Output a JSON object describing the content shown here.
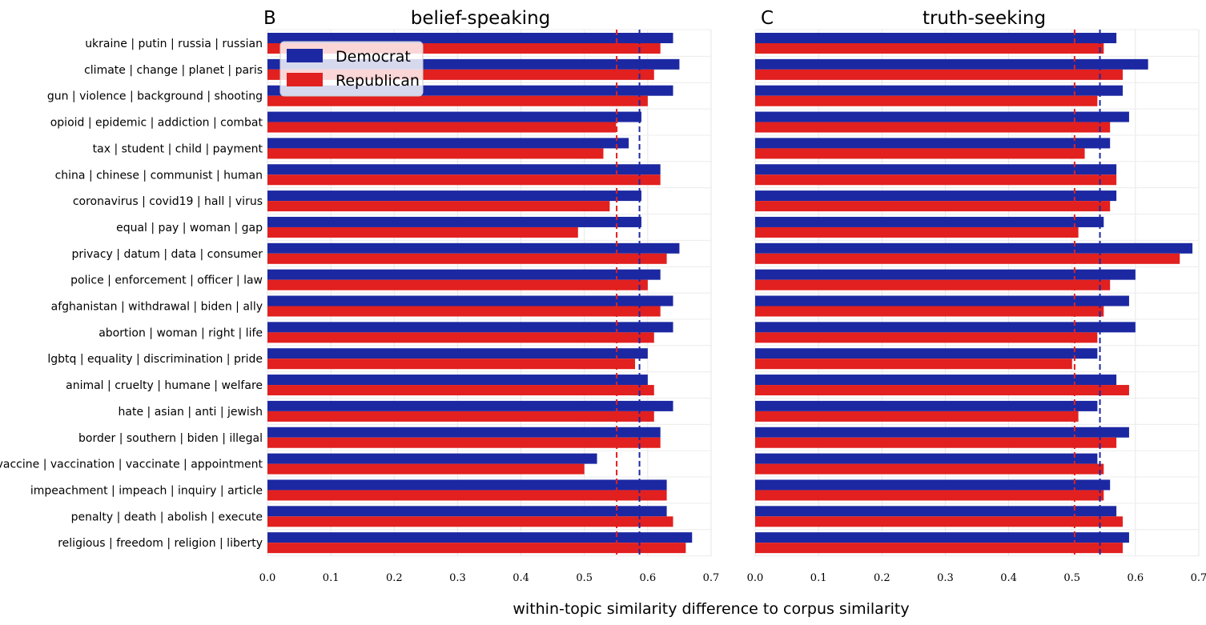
{
  "xlabel": "within-topic similarity difference to corpus similarity",
  "colors": {
    "Democrat": "#1c28a2",
    "Republican": "#e1201f"
  },
  "legend": {
    "entries": [
      "Democrat",
      "Republican"
    ]
  },
  "chart_data": [
    {
      "type": "bar",
      "orientation": "horizontal",
      "panel_letter": "B",
      "title": "belief-speaking",
      "categories": [
        "ukraine | putin | russia | russian",
        "climate | change | planet | paris",
        "gun | violence | background | shooting",
        "opioid | epidemic | addiction | combat",
        "tax | student | child | payment",
        "china | chinese | communist | human",
        "coronavirus | covid19 | hall | virus",
        "equal | pay | woman | gap",
        "privacy | datum | data | consumer",
        "police | enforcement | officer | law",
        "afghanistan | withdrawal | biden | ally",
        "abortion | woman | right | life",
        "lgbtq | equality | discrimination | pride",
        "animal | cruelty | humane | welfare",
        "hate | asian | anti | jewish",
        "border | southern | biden | illegal",
        "vaccine | vaccination | vaccinate | appointment",
        "impeachment | impeach | inquiry | article",
        "penalty | death | abolish | execute",
        "religious | freedom | religion | liberty"
      ],
      "series": [
        {
          "name": "Democrat",
          "values": [
            0.64,
            0.65,
            0.64,
            0.59,
            0.57,
            0.62,
            0.59,
            0.59,
            0.65,
            0.62,
            0.64,
            0.64,
            0.6,
            0.6,
            0.64,
            0.62,
            0.52,
            0.63,
            0.63,
            0.67
          ]
        },
        {
          "name": "Republican",
          "values": [
            0.62,
            0.61,
            0.6,
            0.55,
            0.53,
            0.62,
            0.54,
            0.49,
            0.63,
            0.6,
            0.62,
            0.61,
            0.58,
            0.61,
            0.61,
            0.62,
            0.5,
            0.63,
            0.64,
            0.66
          ]
        }
      ],
      "reference_lines": [
        {
          "series": "Democrat",
          "value": 0.587,
          "style": "dashed"
        },
        {
          "series": "Republican",
          "value": 0.551,
          "style": "dashed"
        }
      ],
      "xlim": [
        0,
        0.7
      ],
      "xticks": [
        "0.0",
        "0.1",
        "0.2",
        "0.3",
        "0.4",
        "0.5",
        "0.6",
        "0.7"
      ],
      "grid": true,
      "legend_position": "top-left"
    },
    {
      "type": "bar",
      "orientation": "horizontal",
      "panel_letter": "C",
      "title": "truth-seeking",
      "categories": [
        "ukraine | putin | russia | russian",
        "climate | change | planet | paris",
        "gun | violence | background | shooting",
        "opioid | epidemic | addiction | combat",
        "tax | student | child | payment",
        "china | chinese | communist | human",
        "coronavirus | covid19 | hall | virus",
        "equal | pay | woman | gap",
        "privacy | datum | data | consumer",
        "police | enforcement | officer | law",
        "afghanistan | withdrawal | biden | ally",
        "abortion | woman | right | life",
        "lgbtq | equality | discrimination | pride",
        "animal | cruelty | humane | welfare",
        "hate | asian | anti | jewish",
        "border | southern | biden | illegal",
        "vaccine | vaccination | vaccinate | appointment",
        "impeachment | impeach | inquiry | article",
        "penalty | death | abolish | execute",
        "religious | freedom | religion | liberty"
      ],
      "series": [
        {
          "name": "Democrat",
          "values": [
            0.57,
            0.62,
            0.58,
            0.59,
            0.56,
            0.57,
            0.57,
            0.55,
            0.69,
            0.6,
            0.59,
            0.6,
            0.54,
            0.57,
            0.54,
            0.59,
            0.54,
            0.56,
            0.57,
            0.59
          ]
        },
        {
          "name": "Republican",
          "values": [
            0.55,
            0.58,
            0.54,
            0.56,
            0.52,
            0.57,
            0.56,
            0.51,
            0.67,
            0.56,
            0.55,
            0.54,
            0.5,
            0.59,
            0.51,
            0.57,
            0.55,
            0.55,
            0.58,
            0.58
          ]
        }
      ],
      "reference_lines": [
        {
          "series": "Democrat",
          "value": 0.544,
          "style": "dashed"
        },
        {
          "series": "Republican",
          "value": 0.504,
          "style": "dashed"
        }
      ],
      "xlim": [
        0,
        0.7
      ],
      "xticks": [
        "0.0",
        "0.1",
        "0.2",
        "0.3",
        "0.4",
        "0.5",
        "0.6",
        "0.7"
      ],
      "grid": true
    }
  ]
}
